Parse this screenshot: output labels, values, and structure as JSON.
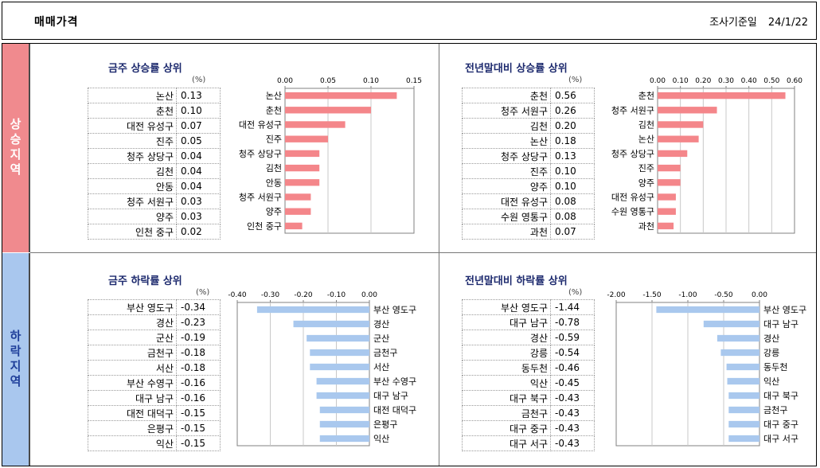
{
  "header": {
    "title": "매매가격",
    "date_label": "조사기준일",
    "date_value": "24/1/22"
  },
  "bands": {
    "up": "상승지역",
    "down": "하락지역"
  },
  "unit_label": "(%)",
  "colors": {
    "up_bar": "#f4868a",
    "down_bar": "#a9c8ee",
    "title": "#1d2a6e"
  },
  "chart_data": [
    {
      "type": "bar",
      "orientation": "horizontal",
      "title": "금주 상승률 상위",
      "categories": [
        "논산",
        "춘천",
        "대전 유성구",
        "진주",
        "청주 상당구",
        "김천",
        "안동",
        "청주 서원구",
        "양주",
        "인천 중구"
      ],
      "labels": [
        "0.13",
        "0.10",
        "0.07",
        "0.05",
        "0.04",
        "0.04",
        "0.04",
        "0.03",
        "0.03",
        "0.02"
      ],
      "values": [
        0.13,
        0.1,
        0.07,
        0.05,
        0.04,
        0.04,
        0.04,
        0.03,
        0.03,
        0.02
      ],
      "xlim": [
        0,
        0.15
      ],
      "ticks": [
        0,
        0.05,
        0.1,
        0.15
      ],
      "tick_labels": [
        "0.00",
        "0.05",
        "0.10",
        "0.15"
      ]
    },
    {
      "type": "bar",
      "orientation": "horizontal",
      "title": "전년말대비 상승률 상위",
      "categories": [
        "춘천",
        "청주 서원구",
        "김천",
        "논산",
        "청주 상당구",
        "진주",
        "양주",
        "대전 유성구",
        "수원 영통구",
        "과천"
      ],
      "labels": [
        "0.56",
        "0.26",
        "0.20",
        "0.18",
        "0.13",
        "0.10",
        "0.10",
        "0.08",
        "0.08",
        "0.07"
      ],
      "values": [
        0.56,
        0.26,
        0.2,
        0.18,
        0.13,
        0.1,
        0.1,
        0.08,
        0.08,
        0.07
      ],
      "xlim": [
        0,
        0.6
      ],
      "ticks": [
        0,
        0.1,
        0.2,
        0.3,
        0.4,
        0.5,
        0.6
      ],
      "tick_labels": [
        "0.00",
        "0.10",
        "0.20",
        "0.30",
        "0.40",
        "0.50",
        "0.60"
      ]
    },
    {
      "type": "bar",
      "orientation": "horizontal",
      "title": "금주 하락률 상위",
      "categories": [
        "부산 영도구",
        "경산",
        "군산",
        "금천구",
        "서산",
        "부산 수영구",
        "대구 남구",
        "대전 대덕구",
        "은평구",
        "익산"
      ],
      "labels": [
        "-0.34",
        "-0.23",
        "-0.19",
        "-0.18",
        "-0.18",
        "-0.16",
        "-0.16",
        "-0.15",
        "-0.15",
        "-0.15"
      ],
      "values": [
        -0.34,
        -0.23,
        -0.19,
        -0.18,
        -0.18,
        -0.16,
        -0.16,
        -0.15,
        -0.15,
        -0.15
      ],
      "xlim": [
        -0.4,
        0
      ],
      "ticks": [
        -0.4,
        -0.3,
        -0.2,
        -0.1,
        0
      ],
      "tick_labels": [
        "-0.40",
        "-0.30",
        "-0.20",
        "-0.10",
        "0.00"
      ]
    },
    {
      "type": "bar",
      "orientation": "horizontal",
      "title": "전년말대비 하락률 상위",
      "categories": [
        "부산 영도구",
        "대구 남구",
        "경산",
        "강릉",
        "동두천",
        "익산",
        "대구 북구",
        "금천구",
        "대구 중구",
        "대구 서구"
      ],
      "labels": [
        "-1.44",
        "-0.78",
        "-0.59",
        "-0.54",
        "-0.46",
        "-0.45",
        "-0.43",
        "-0.43",
        "-0.43",
        "-0.43"
      ],
      "values": [
        -1.44,
        -0.78,
        -0.59,
        -0.54,
        -0.46,
        -0.45,
        -0.43,
        -0.43,
        -0.43,
        -0.43
      ],
      "xlim": [
        -2.0,
        0
      ],
      "ticks": [
        -2.0,
        -1.5,
        -1.0,
        -0.5,
        0
      ],
      "tick_labels": [
        "-2.00",
        "-1.50",
        "-1.00",
        "-0.50",
        "0.00"
      ]
    }
  ]
}
